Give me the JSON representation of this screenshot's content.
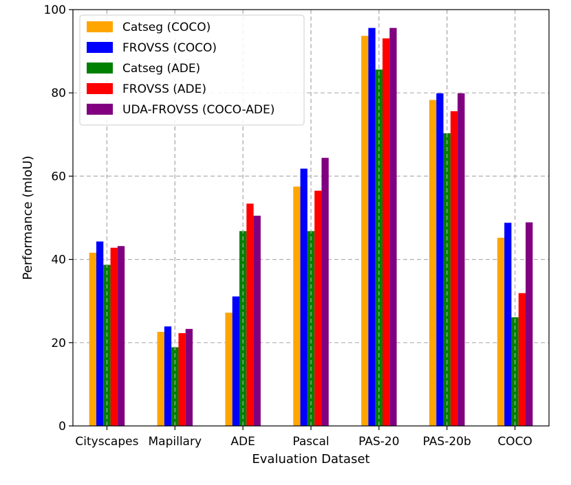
{
  "chart_data": {
    "type": "bar",
    "title": "",
    "xlabel": "Evaluation Dataset",
    "ylabel": "Performance (mIoU)",
    "ylim": [
      0,
      100
    ],
    "yticks": [
      0,
      20,
      40,
      60,
      80,
      100
    ],
    "grid": true,
    "legend_position": "top-left",
    "categories": [
      "Cityscapes",
      "Mapillary",
      "ADE",
      "Pascal",
      "PAS-20",
      "PAS-20b",
      "COCO"
    ],
    "series": [
      {
        "name": "Catseg (COCO)",
        "color": "#FFA500",
        "values": [
          41.6,
          22.6,
          27.2,
          57.5,
          93.7,
          78.3,
          45.2
        ]
      },
      {
        "name": "FROVSS (COCO)",
        "color": "#0000FF",
        "values": [
          44.3,
          23.9,
          31.1,
          61.8,
          95.6,
          79.9,
          48.8
        ]
      },
      {
        "name": "Catseg (ADE)",
        "color": "#008000",
        "values": [
          38.7,
          18.9,
          46.8,
          46.8,
          85.6,
          70.3,
          26.1
        ]
      },
      {
        "name": "FROVSS (ADE)",
        "color": "#FF0000",
        "values": [
          42.8,
          22.3,
          53.4,
          56.5,
          93.1,
          75.6,
          31.9
        ]
      },
      {
        "name": "UDA-FROVSS (COCO-ADE)",
        "color": "#800080",
        "values": [
          43.2,
          23.3,
          50.5,
          64.4,
          95.6,
          79.9,
          48.9
        ]
      }
    ]
  }
}
